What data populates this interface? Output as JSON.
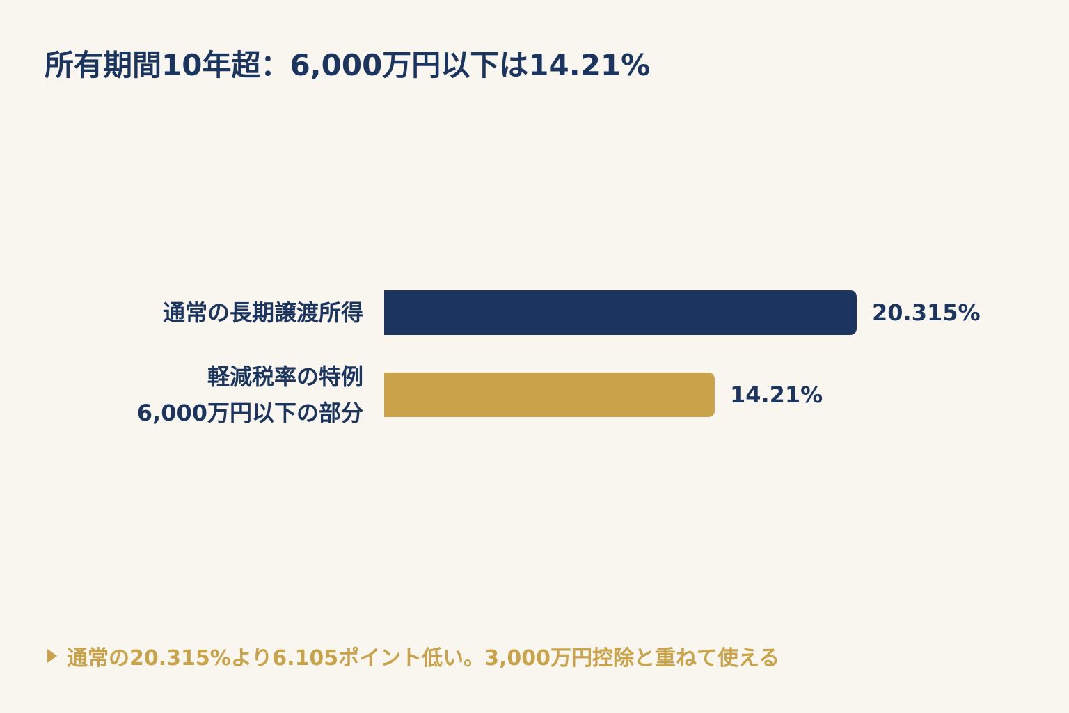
{
  "chart_data": {
    "type": "bar",
    "orientation": "horizontal",
    "title": "所有期間10年超：6,000万円以下は14.21%",
    "categories": [
      "通常の長期譲渡所得",
      "軽減税率の特例\n6,000万円以下の部分"
    ],
    "values": [
      20.315,
      14.21
    ],
    "value_labels": [
      "20.315%",
      "14.21%"
    ],
    "colors": [
      "#1c355e",
      "#c9a24a"
    ],
    "annotation": "通常の20.315%より6.105ポイント低い。3,000万円控除と重ねて使える"
  }
}
